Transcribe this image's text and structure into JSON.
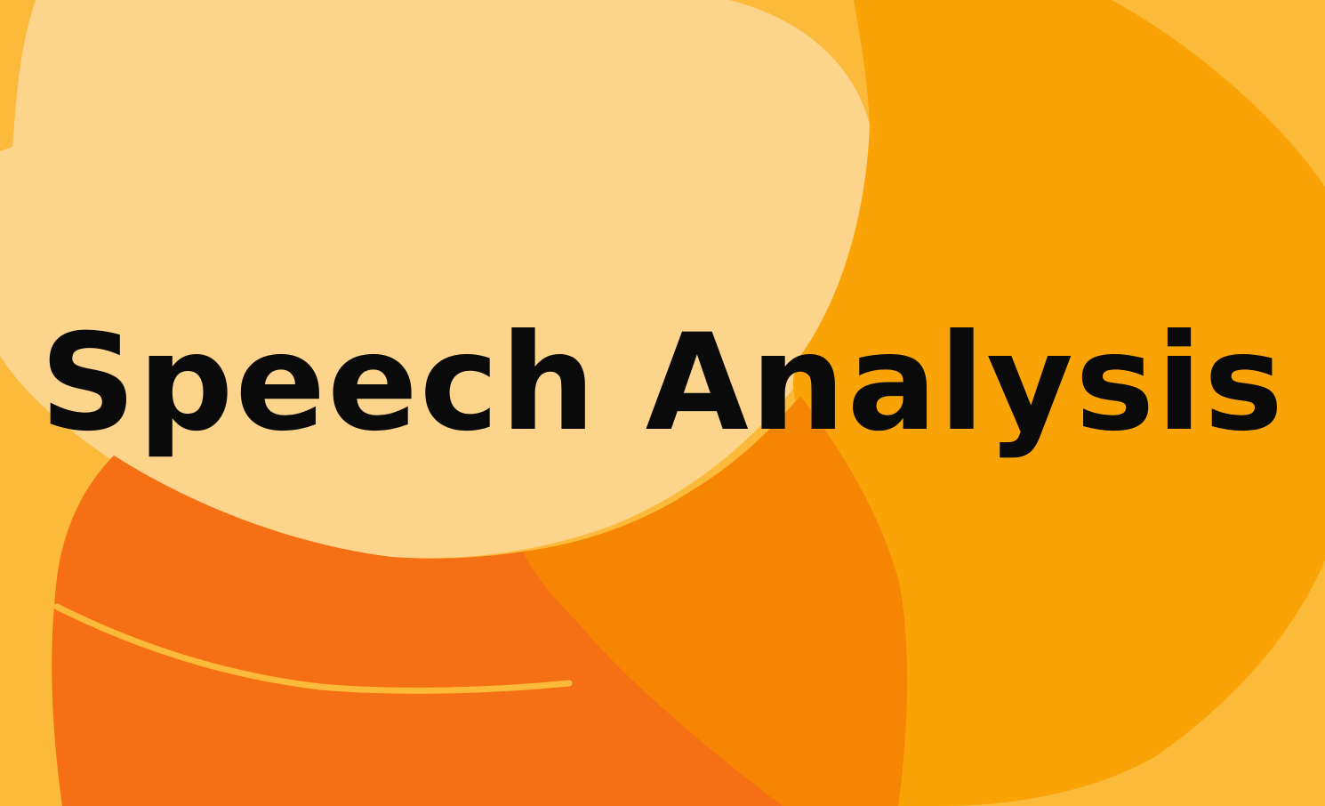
{
  "title": "Speech Analysis",
  "colors": {
    "base_amber": "#FBBA3A",
    "pale_peach": "#FCD48C",
    "deep_orange": "#F56F14",
    "tangerine": "#F78504",
    "bright_orange": "#FAA307",
    "stroke_accent": "#FBBA3A",
    "text": "#0A0A0A"
  },
  "shapes": [
    {
      "name": "background-amber",
      "kind": "decorative-fill"
    },
    {
      "name": "pale-peach-blob",
      "kind": "decorative-blob"
    },
    {
      "name": "deep-orange-blob",
      "kind": "decorative-blob"
    },
    {
      "name": "bright-orange-circle",
      "kind": "decorative-blob"
    },
    {
      "name": "tangerine-overlap",
      "kind": "decorative-blob"
    },
    {
      "name": "curved-accent-stroke",
      "kind": "decorative-line"
    }
  ]
}
